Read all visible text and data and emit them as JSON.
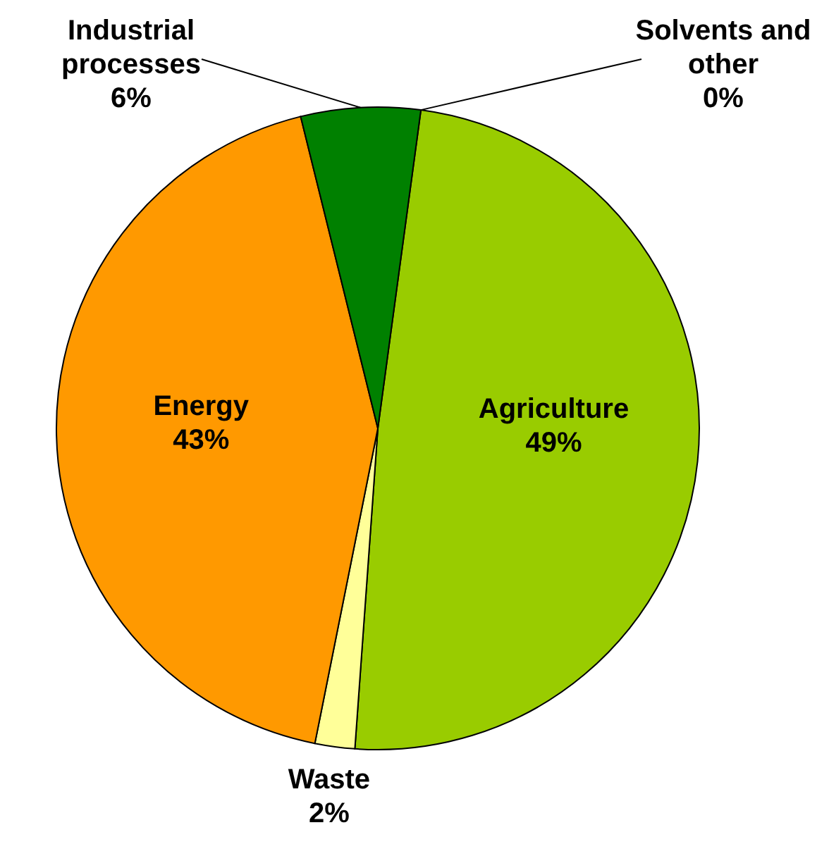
{
  "chart_data": {
    "type": "pie",
    "categories": [
      "Agriculture",
      "Waste",
      "Energy",
      "Industrial processes",
      "Solvents and other"
    ],
    "values": [
      49,
      2,
      43,
      6,
      0
    ],
    "value_labels": [
      "49%",
      "2%",
      "43%",
      "6%",
      "0%"
    ],
    "colors": [
      "#99cc00",
      "#ffff99",
      "#ff9900",
      "#008000",
      null
    ]
  }
}
